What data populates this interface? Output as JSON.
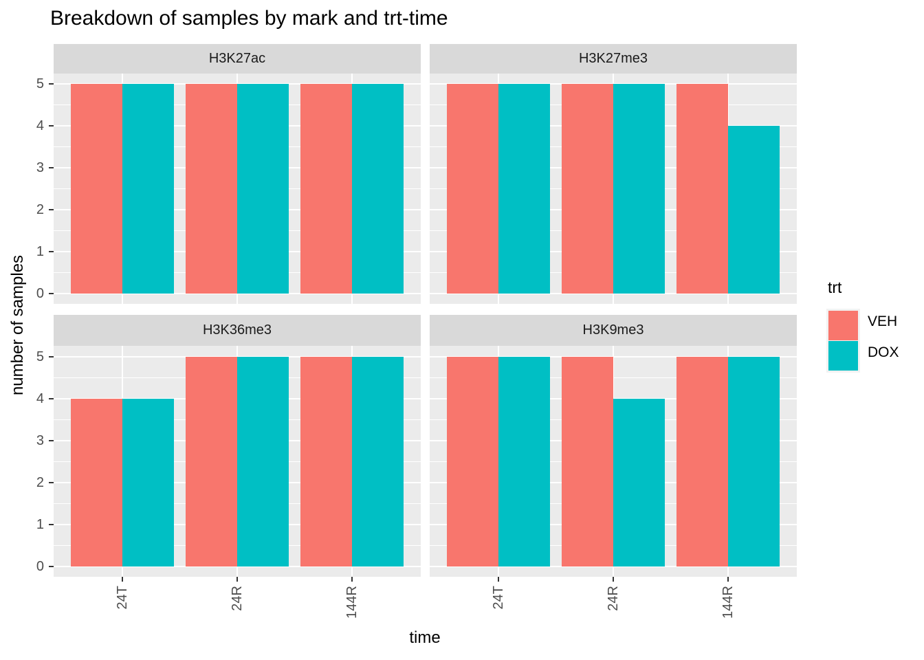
{
  "title": "Breakdown of samples by mark and trt-time",
  "axes": {
    "x_title": "time",
    "y_title": "number of samples",
    "x_categories": [
      "24T",
      "24R",
      "144R"
    ],
    "y_ticks": [
      "0",
      "1",
      "2",
      "3",
      "4",
      "5"
    ]
  },
  "legend": {
    "title": "trt",
    "items": [
      {
        "label": "VEH",
        "color": "#F8766D"
      },
      {
        "label": "DOX",
        "color": "#00BFC4"
      }
    ]
  },
  "colors": {
    "veh": "#F8766D",
    "dox": "#00BFC4",
    "panel_bg": "#EBEBEB",
    "strip_bg": "#D9D9D9",
    "gridline": "#FFFFFF",
    "tick_mark": "#333333",
    "tick_text": "#4D4D4D",
    "title_text": "#000000"
  },
  "chart_data": {
    "type": "bar",
    "title": "Breakdown of samples by mark and trt-time",
    "xlabel": "time",
    "ylabel": "number of samples",
    "ylim": [
      0,
      5
    ],
    "grid": "on",
    "legend_position": "right",
    "categories": [
      "24T",
      "24R",
      "144R"
    ],
    "facets": [
      {
        "mark": "H3K27ac",
        "series": [
          {
            "name": "VEH",
            "values": [
              5,
              5,
              5
            ]
          },
          {
            "name": "DOX",
            "values": [
              5,
              5,
              5
            ]
          }
        ]
      },
      {
        "mark": "H3K27me3",
        "series": [
          {
            "name": "VEH",
            "values": [
              5,
              5,
              5
            ]
          },
          {
            "name": "DOX",
            "values": [
              5,
              5,
              4
            ]
          }
        ]
      },
      {
        "mark": "H3K36me3",
        "series": [
          {
            "name": "VEH",
            "values": [
              4,
              5,
              5
            ]
          },
          {
            "name": "DOX",
            "values": [
              4,
              5,
              5
            ]
          }
        ]
      },
      {
        "mark": "H3K9me3",
        "series": [
          {
            "name": "VEH",
            "values": [
              5,
              5,
              5
            ]
          },
          {
            "name": "DOX",
            "values": [
              5,
              4,
              5
            ]
          }
        ]
      }
    ]
  }
}
